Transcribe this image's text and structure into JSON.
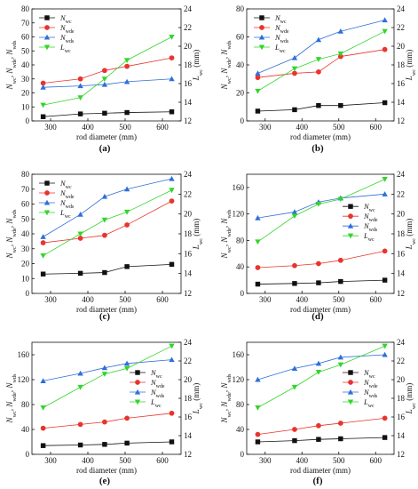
{
  "figure": {
    "panel_labels": [
      "(a)",
      "(b)",
      "(c)",
      "(d)",
      "(e)",
      "(f)"
    ],
    "colors": {
      "Nwc": "#111111",
      "Nwde": "#e8342e",
      "Nwds": "#2f6fd8",
      "Lwc": "#33d52b",
      "axis": "#111111"
    }
  },
  "chart_data": [
    {
      "panel": "(a)",
      "type": "line",
      "xlabel": "rod diameter (mm)",
      "ylabel_left": "Nwc, Nwde, Nwds",
      "ylabel_right": "Lwc (mm)",
      "x": [
        280,
        380,
        445,
        505,
        625
      ],
      "xticks": [
        300,
        400,
        500,
        600
      ],
      "ylim_left": [
        0,
        80
      ],
      "yticks_left": [
        0,
        10,
        20,
        30,
        40,
        50,
        60,
        70,
        80
      ],
      "ylim_right": [
        12,
        24
      ],
      "yticks_right": [
        12,
        14,
        16,
        18,
        20,
        22,
        24
      ],
      "legend_placement": "top-left",
      "series": [
        {
          "name": "Nwc",
          "axis": "left",
          "marker": "square",
          "values": [
            3,
            5,
            5.5,
            6,
            6.5
          ]
        },
        {
          "name": "Nwde",
          "axis": "left",
          "marker": "circle",
          "values": [
            27,
            30,
            36,
            39,
            45
          ]
        },
        {
          "name": "Nwds",
          "axis": "left",
          "marker": "triangle-up",
          "values": [
            24,
            25,
            26,
            28,
            30
          ]
        },
        {
          "name": "Lwc",
          "axis": "right",
          "marker": "triangle-down",
          "values": [
            13.7,
            14.5,
            16.5,
            18.5,
            21
          ]
        }
      ]
    },
    {
      "panel": "(b)",
      "type": "line",
      "xlabel": "rod diameter (mm)",
      "ylabel_left": "Nwc, Nwde, Nwds",
      "ylabel_right": "Lwc (mm)",
      "x": [
        280,
        380,
        445,
        505,
        625
      ],
      "xticks": [
        300,
        400,
        500,
        600
      ],
      "ylim_left": [
        0,
        80
      ],
      "yticks_left": [
        0,
        20,
        40,
        60,
        80
      ],
      "ylim_right": [
        12,
        24
      ],
      "yticks_right": [
        12,
        14,
        16,
        18,
        20,
        22,
        24
      ],
      "legend_placement": "top-left",
      "series": [
        {
          "name": "Nwc",
          "axis": "left",
          "marker": "square",
          "values": [
            7,
            8,
            11,
            11,
            13
          ]
        },
        {
          "name": "Nwde",
          "axis": "left",
          "marker": "circle",
          "values": [
            31,
            34,
            35,
            46,
            51
          ]
        },
        {
          "name": "Nwds",
          "axis": "left",
          "marker": "triangle-up",
          "values": [
            34,
            45,
            58,
            64,
            72
          ]
        },
        {
          "name": "Lwc",
          "axis": "right",
          "marker": "triangle-down",
          "values": [
            15.2,
            17.6,
            18.6,
            19.2,
            21.6
          ]
        }
      ]
    },
    {
      "panel": "(c)",
      "type": "line",
      "xlabel": "rod diameter (mm)",
      "ylabel_left": "Nwc, Nwde, Nwds",
      "ylabel_right": "Lwc (mm)",
      "x": [
        280,
        380,
        445,
        505,
        625
      ],
      "xticks": [
        300,
        400,
        500,
        600
      ],
      "ylim_left": [
        0,
        80
      ],
      "yticks_left": [
        0,
        10,
        20,
        30,
        40,
        50,
        60,
        70,
        80
      ],
      "ylim_right": [
        12,
        24
      ],
      "yticks_right": [
        12,
        14,
        16,
        18,
        20,
        22,
        24
      ],
      "legend_placement": "top-left",
      "series": [
        {
          "name": "Nwc",
          "axis": "left",
          "marker": "square",
          "values": [
            13,
            13.5,
            14,
            18,
            19.5
          ]
        },
        {
          "name": "Nwde",
          "axis": "left",
          "marker": "circle",
          "values": [
            34,
            37,
            39,
            46,
            62
          ]
        },
        {
          "name": "Nwds",
          "axis": "left",
          "marker": "triangle-up",
          "values": [
            38,
            53,
            65,
            70,
            77
          ]
        },
        {
          "name": "Lwc",
          "axis": "right",
          "marker": "triangle-down",
          "values": [
            15.8,
            18,
            19.4,
            20.2,
            22.4
          ]
        }
      ]
    },
    {
      "panel": "(d)",
      "type": "line",
      "xlabel": "rod diameter (mm)",
      "ylabel_left": "Nwc, Nwde, Nwds",
      "ylabel_right": "Lwc (mm)",
      "x": [
        280,
        380,
        445,
        505,
        625
      ],
      "xticks": [
        300,
        400,
        500,
        600
      ],
      "ylim_left": [
        0,
        180
      ],
      "yticks_left": [
        0,
        40,
        80,
        120,
        160
      ],
      "ylim_right": [
        12,
        24
      ],
      "yticks_right": [
        12,
        14,
        16,
        18,
        20,
        22,
        24
      ],
      "legend_placement": "right",
      "series": [
        {
          "name": "Nwc",
          "axis": "left",
          "marker": "square",
          "values": [
            14,
            15,
            16,
            18,
            20
          ]
        },
        {
          "name": "Nwde",
          "axis": "left",
          "marker": "circle",
          "values": [
            39,
            42,
            45,
            50,
            64
          ]
        },
        {
          "name": "Nwds",
          "axis": "left",
          "marker": "triangle-up",
          "values": [
            114,
            123,
            138,
            144,
            150
          ]
        },
        {
          "name": "Lwc",
          "axis": "right",
          "marker": "triangle-down",
          "values": [
            17.2,
            19.8,
            21,
            21.5,
            23.5
          ]
        }
      ]
    },
    {
      "panel": "(e)",
      "type": "line",
      "xlabel": "rod diameter (mm)",
      "ylabel_left": "Nwc, Nwde, Nwds",
      "ylabel_right": "Lwc (mm)",
      "x": [
        280,
        380,
        445,
        505,
        625
      ],
      "xticks": [
        300,
        400,
        500,
        600
      ],
      "ylim_left": [
        0,
        180
      ],
      "yticks_left": [
        0,
        40,
        80,
        120,
        160
      ],
      "ylim_right": [
        12,
        24
      ],
      "yticks_right": [
        12,
        14,
        16,
        18,
        20,
        22,
        24
      ],
      "legend_placement": "right",
      "series": [
        {
          "name": "Nwc",
          "axis": "left",
          "marker": "square",
          "values": [
            14,
            15,
            16,
            18,
            20
          ]
        },
        {
          "name": "Nwde",
          "axis": "left",
          "marker": "circle",
          "values": [
            42,
            48,
            52,
            58,
            66
          ]
        },
        {
          "name": "Nwds",
          "axis": "left",
          "marker": "triangle-up",
          "values": [
            118,
            130,
            139,
            146,
            152
          ]
        },
        {
          "name": "Lwc",
          "axis": "right",
          "marker": "triangle-down",
          "values": [
            17,
            19.2,
            20.6,
            21.2,
            23.6
          ]
        }
      ]
    },
    {
      "panel": "(f)",
      "type": "line",
      "xlabel": "rod diameter (mm)",
      "ylabel_left": "Nwc, Nwde, Nwds",
      "ylabel_right": "Lwc (mm)",
      "x": [
        280,
        380,
        445,
        505,
        625
      ],
      "xticks": [
        300,
        400,
        500,
        600
      ],
      "ylim_left": [
        0,
        180
      ],
      "yticks_left": [
        0,
        40,
        80,
        120,
        160
      ],
      "ylim_right": [
        12,
        24
      ],
      "yticks_right": [
        12,
        14,
        16,
        18,
        20,
        22,
        24
      ],
      "legend_placement": "right",
      "series": [
        {
          "name": "Nwc",
          "axis": "left",
          "marker": "square",
          "values": [
            20,
            22,
            24,
            25,
            27
          ]
        },
        {
          "name": "Nwde",
          "axis": "left",
          "marker": "circle",
          "values": [
            32,
            40,
            46,
            50,
            58
          ]
        },
        {
          "name": "Nwds",
          "axis": "left",
          "marker": "triangle-up",
          "values": [
            120,
            138,
            146,
            156,
            160
          ]
        },
        {
          "name": "Lwc",
          "axis": "right",
          "marker": "triangle-down",
          "values": [
            17,
            19.2,
            20.8,
            21.6,
            23.6
          ]
        }
      ]
    }
  ]
}
